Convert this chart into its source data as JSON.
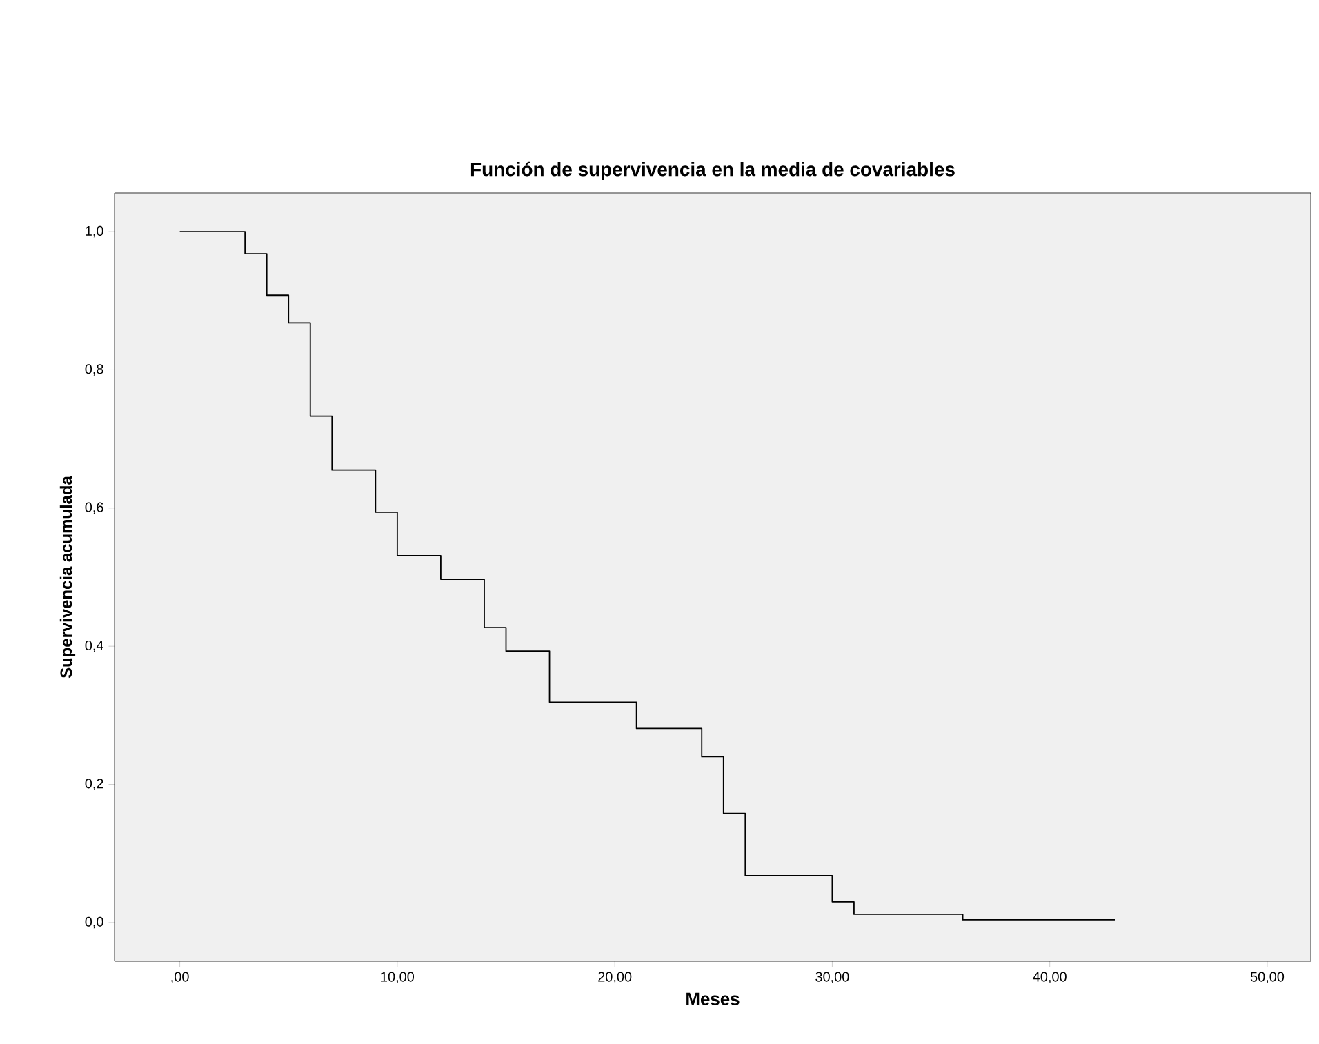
{
  "chart_data": {
    "type": "step",
    "title": "Función de supervivencia en la media de covariables",
    "xlabel": "Meses",
    "ylabel": "Supervivencia acumulada",
    "x": [
      0,
      3,
      4,
      5,
      6,
      7,
      9,
      10,
      12,
      14,
      15,
      17,
      21,
      24,
      25,
      26,
      30,
      31,
      36,
      43
    ],
    "series": [
      {
        "color": "#000000",
        "values": [
          1,
          0.968,
          0.908,
          0.868,
          0.733,
          0.655,
          0.594,
          0.531,
          0.497,
          0.427,
          0.393,
          0.319,
          0.281,
          0.24,
          0.158,
          0.068,
          0.03,
          0.012,
          0.004,
          0.004
        ]
      }
    ],
    "xlim": [
      -3,
      52
    ],
    "ylim": [
      -0.056,
      1.056
    ],
    "xticks": [
      {
        "value": 0,
        "label": ",00"
      },
      {
        "value": 10,
        "label": "10,00"
      },
      {
        "value": 20,
        "label": "20,00"
      },
      {
        "value": 30,
        "label": "30,00"
      },
      {
        "value": 40,
        "label": "40,00"
      },
      {
        "value": 50,
        "label": "50,00"
      }
    ],
    "yticks": [
      {
        "value": 0,
        "label": "0,0"
      },
      {
        "value": 0.2,
        "label": "0,2"
      },
      {
        "value": 0.4,
        "label": "0,4"
      },
      {
        "value": 0.6,
        "label": "0,6"
      },
      {
        "value": 0.8,
        "label": "0,8"
      },
      {
        "value": 1,
        "label": "1,0"
      }
    ]
  }
}
